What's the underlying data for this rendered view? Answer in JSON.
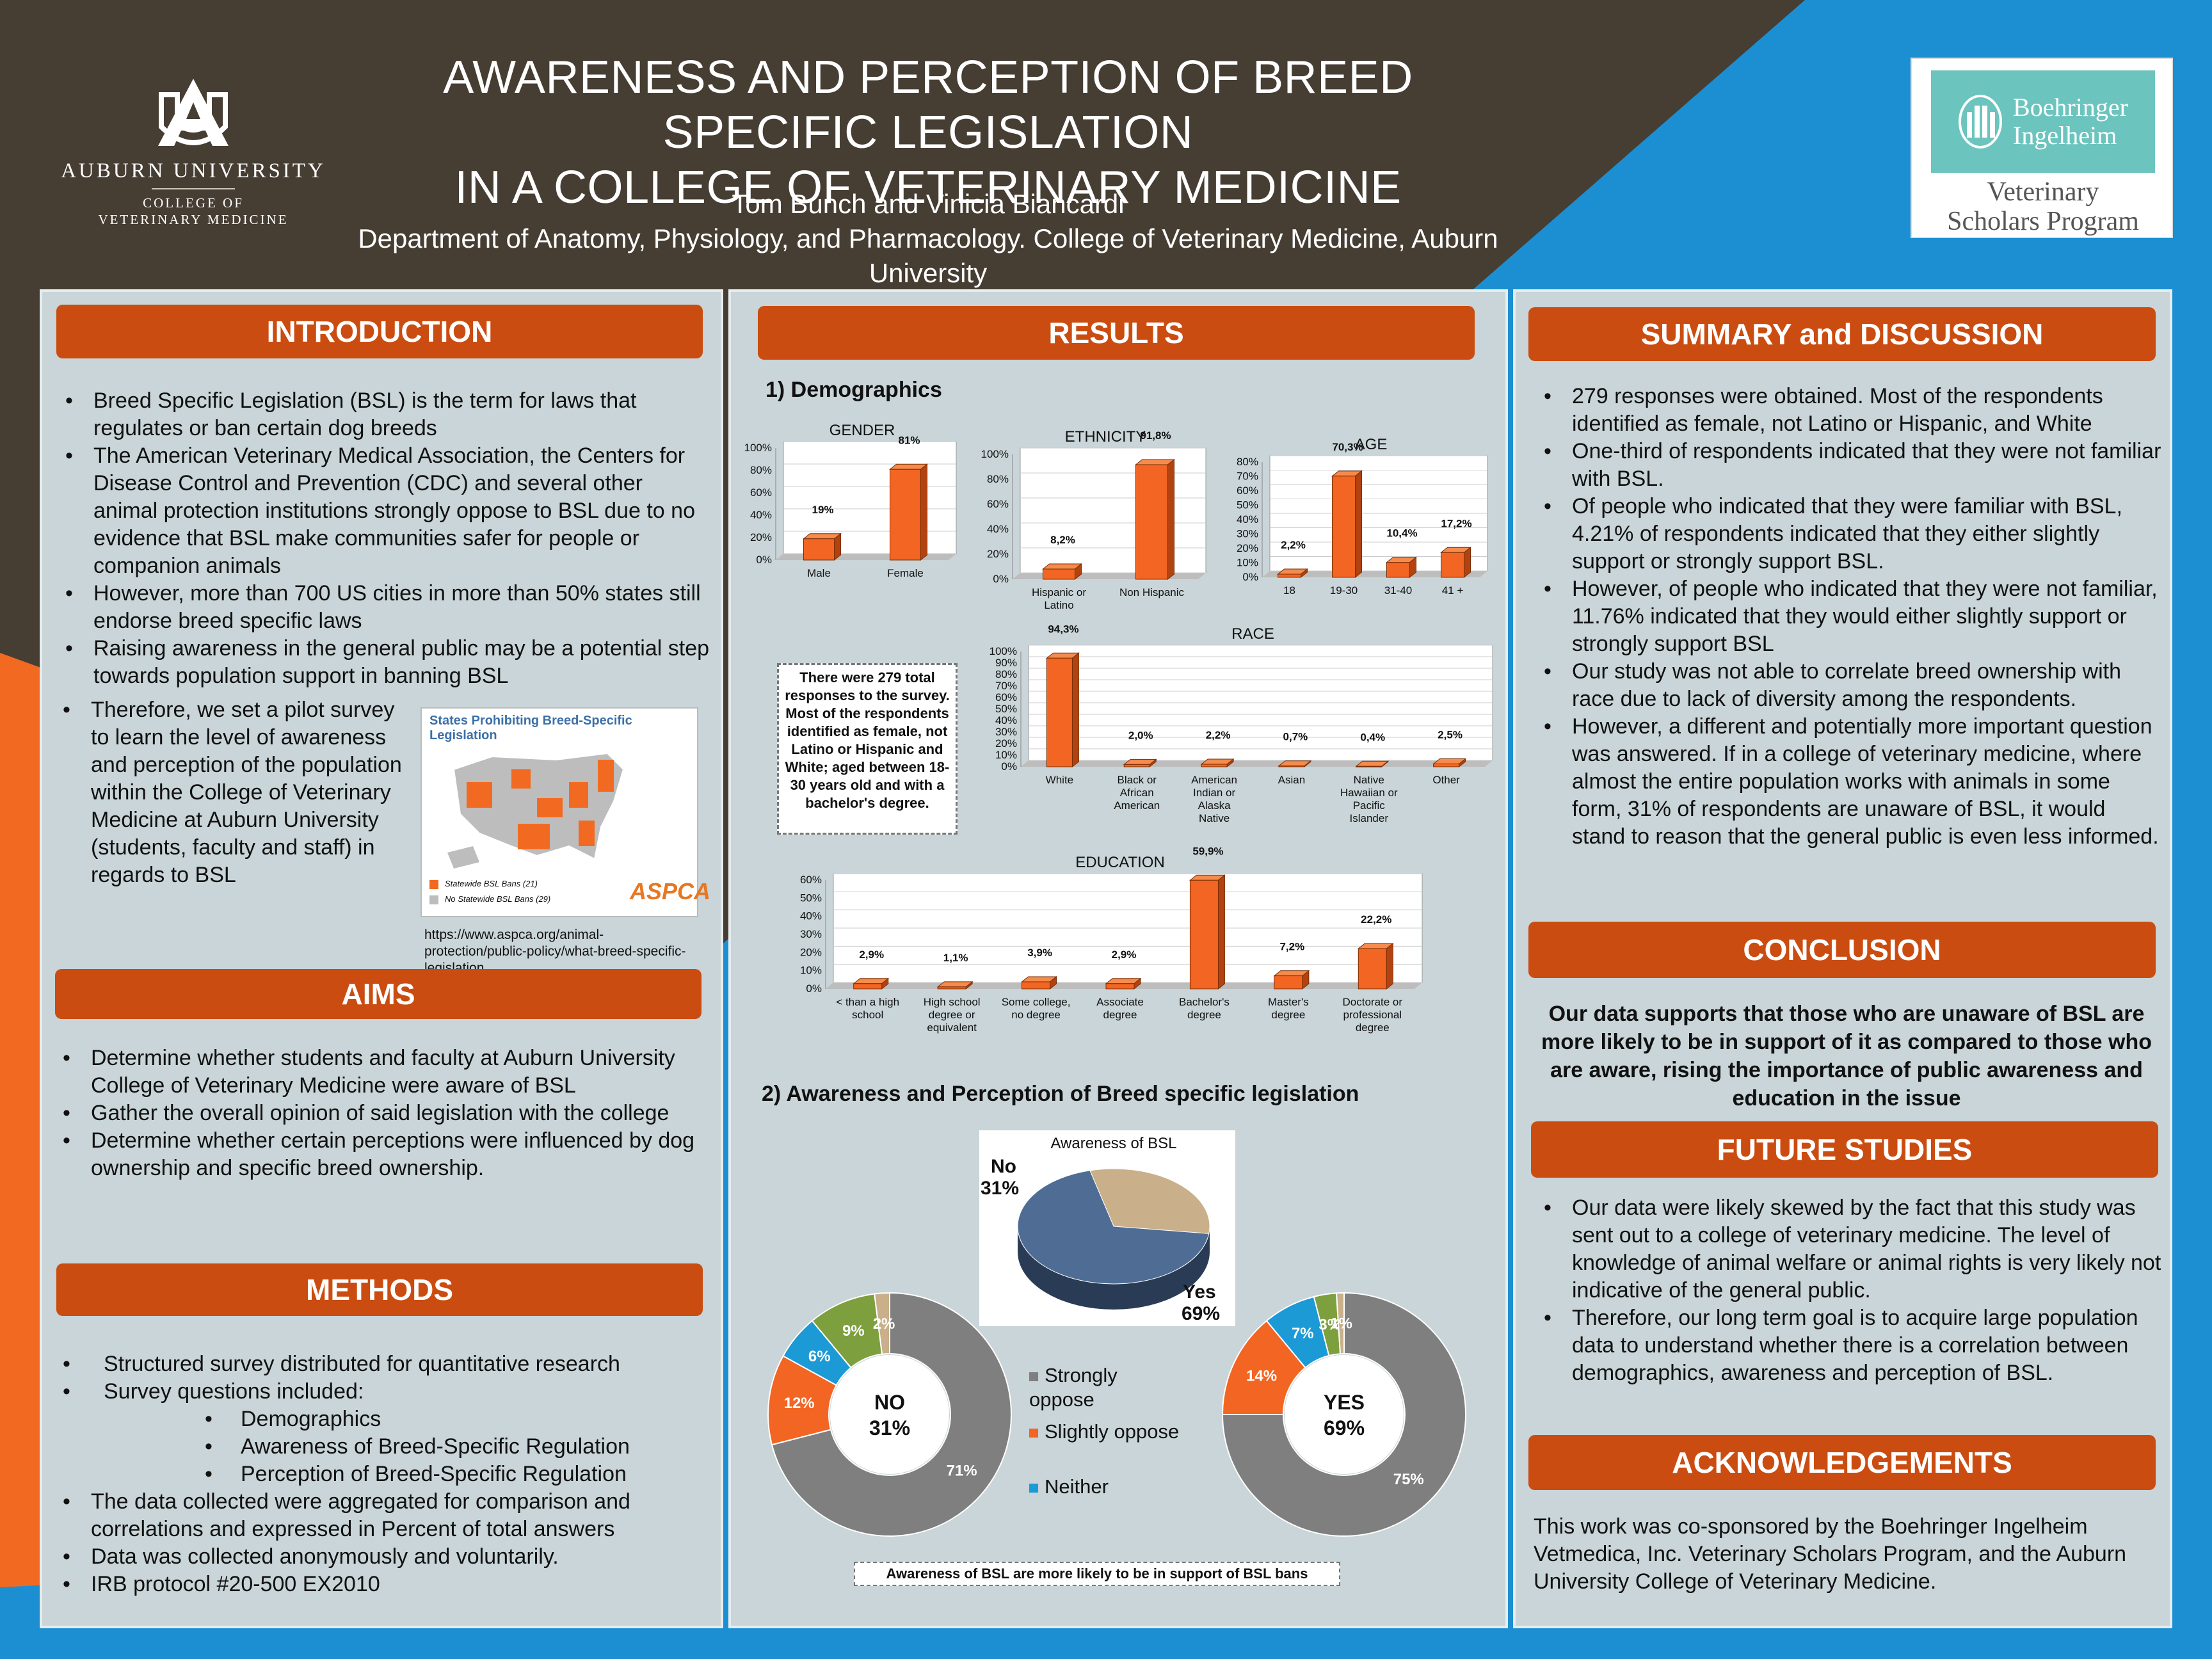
{
  "header": {
    "title_line1": "AWARENESS AND PERCEPTION OF BREED SPECIFIC LEGISLATION",
    "title_line2": "IN A COLLEGE OF VETERINARY MEDICINE",
    "authors": "Tom Bunch and Vinicia Biancardi",
    "affiliation": "Department of Anatomy, Physiology, and Pharmacology. College of Veterinary Medicine, Auburn University"
  },
  "logos": {
    "auburn_name": "AUBURN UNIVERSITY",
    "auburn_college_1": "COLLEGE OF",
    "auburn_college_2": "VETERINARY MEDICINE",
    "bi_line1": "Boehringer",
    "bi_line2": "Ingelheim",
    "bi_program_1": "Veterinary",
    "bi_program_2": "Scholars Program"
  },
  "colors": {
    "banner": "#cb4c10",
    "bar": "#f26522",
    "panel": "#c9d5d8",
    "dark_bg": "#463d33",
    "blue_bg": "#1b8fd1",
    "orange_bg": "#f26a21"
  },
  "introduction": {
    "heading": "INTRODUCTION",
    "bullets": [
      "Breed Specific Legislation (BSL) is the term for laws that regulates or ban certain dog breeds",
      "The American Veterinary Medical Association, the Centers for Disease Control and Prevention (CDC) and several other animal protection institutions strongly oppose to BSL due to no evidence that BSL make communities safer for people or companion animals",
      "However, more than 700 US cities in more than 50% states still endorse breed specific laws",
      "Raising awareness in the general public may be a potential step towards population support in banning BSL",
      "Therefore, we set a pilot survey to learn the level of awareness and perception of the population within the College of Veterinary Medicine at Auburn University (students, faculty and staff) in regards to BSL"
    ],
    "map_title": "States Prohibiting Breed-Specific Legislation",
    "map_legend_1": "Statewide BSL Bans (21)",
    "map_legend_2": "No Statewide BSL Bans (29)",
    "map_brand": "ASPCA",
    "url": "https://www.aspca.org/animal-protection/public-policy/what-breed-specific-legislation"
  },
  "aims": {
    "heading": "AIMS",
    "bullets": [
      "Determine whether students and faculty at Auburn University College of Veterinary Medicine were aware of BSL",
      "Gather the overall opinion of said legislation with the college",
      " Determine whether certain perceptions were influenced by dog ownership and specific breed ownership."
    ]
  },
  "methods": {
    "heading": "METHODS",
    "bullets": [
      "Structured survey distributed for quantitative research",
      "Survey questions included:"
    ],
    "sub_bullets": [
      "Demographics",
      "Awareness of Breed-Specific Regulation",
      "Perception of Breed-Specific Regulation"
    ],
    "bullets_after": [
      "The data collected were aggregated for comparison and correlations and expressed in Percent of total answers",
      "Data was collected anonymously and voluntarily.",
      "IRB protocol #20-500 EX2010"
    ]
  },
  "results": {
    "heading": "RESULTS",
    "section1": "1) Demographics",
    "section2": "2)  Awareness and Perception of Breed specific legislation",
    "note": "There were 279 total responses to the survey. Most of the respondents identified as female, not Latino or Hispanic and White; aged between 18-30 years old and with a bachelor's degree.",
    "bottom_note": "Awareness of BSL are more likely to be in support of BSL bans",
    "legend": [
      "Strongly oppose",
      "Slightly oppose",
      "Neither"
    ],
    "no_center": "NO",
    "no_center_pct": "31%",
    "yes_center": "YES",
    "yes_center_pct": "69%"
  },
  "chart_data": [
    {
      "type": "bar",
      "title": "GENDER",
      "categories": [
        "Male",
        "Female"
      ],
      "values": [
        19,
        81
      ],
      "value_labels": [
        "19%",
        "81%"
      ],
      "ylim": [
        0,
        100
      ],
      "yticks": [
        "0%",
        "20%",
        "40%",
        "60%",
        "80%",
        "100%"
      ]
    },
    {
      "type": "bar",
      "title": "ETHNICITY",
      "categories": [
        "Hispanic or Latino",
        "Non Hispanic"
      ],
      "values": [
        8.2,
        91.8
      ],
      "value_labels": [
        "8,2%",
        "91,8%"
      ],
      "ylim": [
        0,
        100
      ],
      "yticks": [
        "0%",
        "20%",
        "40%",
        "60%",
        "80%",
        "100%"
      ]
    },
    {
      "type": "bar",
      "title": "AGE",
      "categories": [
        "18",
        "19-30",
        "31-40",
        "41 +"
      ],
      "values": [
        2.2,
        70.3,
        10.4,
        17.2
      ],
      "value_labels": [
        "2,2%",
        "70,3%",
        "10,4%",
        "17,2%"
      ],
      "ylim": [
        0,
        80
      ],
      "yticks": [
        "0%",
        "10%",
        "20%",
        "30%",
        "40%",
        "50%",
        "60%",
        "70%",
        "80%"
      ]
    },
    {
      "type": "bar",
      "title": "RACE",
      "categories": [
        "White",
        "Black or African American",
        "American Indian or Alaska Native",
        "Asian",
        "Native Hawaiian or Pacific Islander",
        "Other"
      ],
      "values": [
        94.3,
        2.0,
        2.2,
        0.7,
        0.4,
        2.5
      ],
      "value_labels": [
        "94,3%",
        "2,0%",
        "2,2%",
        "0,7%",
        "0,4%",
        "2,5%"
      ],
      "ylim": [
        0,
        100
      ],
      "yticks": [
        "0%",
        "10%",
        "20%",
        "30%",
        "40%",
        "50%",
        "60%",
        "70%",
        "80%",
        "90%",
        "100%"
      ]
    },
    {
      "type": "bar",
      "title": "EDUCATION",
      "categories": [
        "< than a high school",
        "High school degree or equivalent",
        "Some college, no degree",
        "Associate degree",
        "Bachelor's degree",
        "Master's degree",
        "Doctorate or professional degree"
      ],
      "values": [
        2.9,
        1.1,
        3.9,
        2.9,
        59.9,
        7.2,
        22.2
      ],
      "value_labels": [
        "2,9%",
        "1,1%",
        "3,9%",
        "2,9%",
        "59,9%",
        "7,2%",
        "22,2%"
      ],
      "ylim": [
        0,
        60
      ],
      "yticks": [
        "0%",
        "10%",
        "20%",
        "30%",
        "40%",
        "50%",
        "60%"
      ]
    },
    {
      "type": "pie",
      "title": "Awareness of BSL",
      "labels": [
        "No",
        "Yes"
      ],
      "values": [
        31,
        69
      ],
      "value_labels": [
        "31%",
        "69%"
      ],
      "colors": [
        "#c9b08a",
        "#4f6d94"
      ]
    },
    {
      "type": "pie",
      "title": "",
      "labels": [
        "Strongly oppose",
        "Slightly oppose",
        "Neither",
        "",
        ""
      ],
      "values": [
        71,
        12,
        6,
        9,
        2
      ],
      "value_labels": [
        "71%",
        "12%",
        "6%",
        "9%",
        "2%"
      ],
      "colors": [
        "#7f7f7f",
        "#f26522",
        "#1b9ad6",
        "#7e9f3d",
        "#c9b08a"
      ]
    },
    {
      "type": "pie",
      "title": "",
      "labels": [
        "Strongly oppose",
        "Slightly oppose",
        "Neither",
        "",
        ""
      ],
      "values": [
        75,
        14,
        7,
        3,
        1
      ],
      "value_labels": [
        "75%",
        "14%",
        "7%",
        "3%",
        "1%"
      ],
      "colors": [
        "#7f7f7f",
        "#f26522",
        "#1b9ad6",
        "#7e9f3d",
        "#c9b08a"
      ]
    }
  ],
  "summary": {
    "heading": "SUMMARY and DISCUSSION",
    "bullets": [
      "279 responses were obtained. Most of the respondents identified as female, not Latino or Hispanic, and White",
      "One-third of respondents indicated that they were not familiar with BSL.",
      "Of people who indicated that they were familiar with BSL, 4.21% of respondents indicated that they either slightly support or strongly support BSL.",
      "However, of people who indicated that they were not familiar, 11.76% indicated that they would either slightly support or strongly support BSL",
      "Our study was not able to correlate breed ownership with race due to lack of diversity among the respondents.",
      "However, a different and potentially more important question was answered. If in a college of veterinary medicine, where almost the entire population works with animals in some form, 31% of respondents are unaware of BSL, it would stand to reason that the general public is even less informed."
    ]
  },
  "conclusion": {
    "heading": "CONCLUSION",
    "text": "Our data supports that those who are unaware of BSL are more likely to be in support of it as compared to those who are aware, rising the importance of public awareness and education in the issue"
  },
  "future": {
    "heading": "FUTURE STUDIES",
    "bullets": [
      "Our  data were likely skewed by the fact that this study was sent out to a college of veterinary medicine. The level of knowledge of animal welfare or animal rights is very likely not indicative of the general public.",
      "Therefore, our long term goal is to acquire large population data to understand whether there is a correlation between demographics, awareness and perception of BSL."
    ]
  },
  "acknowledgements": {
    "heading": "ACKNOWLEDGEMENTS",
    "text": "This work was co-sponsored by the Boehringer Ingelheim Vetmedica, Inc. Veterinary Scholars Program, and the Auburn University College of Veterinary Medicine."
  }
}
